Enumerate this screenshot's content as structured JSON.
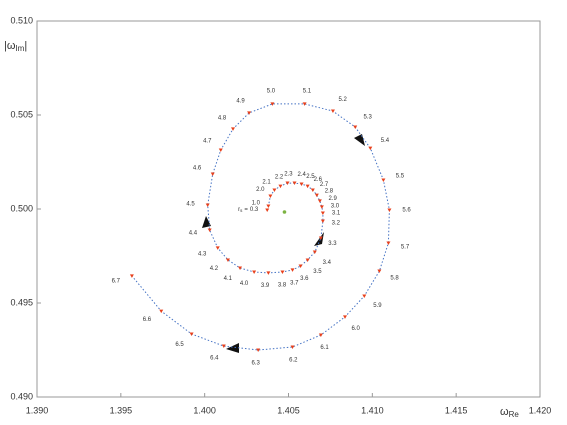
{
  "chart_data": {
    "type": "spiral",
    "x": [
      1.40373,
      1.4038,
      1.40392,
      1.40416,
      1.40452,
      1.40494,
      1.40536,
      1.40578,
      1.40614,
      1.40645,
      1.40669,
      1.40687,
      1.40699,
      1.40705,
      1.40705,
      1.40693,
      1.40657,
      1.40614,
      1.40572,
      1.40524,
      1.40464,
      1.4038,
      1.40295,
      1.40211,
      1.40139,
      1.40078,
      1.4003,
      1.40018,
      1.40048,
      1.40096,
      1.40169,
      1.40265,
      1.40404,
      1.40596,
      1.40765,
      1.40898,
      1.40988,
      1.41066,
      1.41102,
      1.41096,
      1.41042,
      1.40952,
      1.40837,
      1.40693,
      1.40524,
      1.40319,
      1.40114,
      1.39922,
      1.39741,
      1.39566
    ],
    "y": [
      0.49995,
      0.50016,
      0.50069,
      0.50101,
      0.50122,
      0.50138,
      0.50138,
      0.50133,
      0.50122,
      0.50101,
      0.50074,
      0.50043,
      0.50011,
      0.49979,
      0.49936,
      0.49846,
      0.49771,
      0.49729,
      0.49697,
      0.49676,
      0.49665,
      0.4966,
      0.49665,
      0.49686,
      0.49729,
      0.49793,
      0.49888,
      0.50021,
      0.50186,
      0.50314,
      0.50426,
      0.50511,
      0.50559,
      0.50559,
      0.50521,
      0.50436,
      0.50324,
      0.50154,
      0.49995,
      0.49819,
      0.4967,
      0.49537,
      0.49426,
      0.4933,
      0.49266,
      0.4925,
      0.49271,
      0.49335,
      0.49457,
      0.49644
    ],
    "point_labels": [
      "0.3",
      "1.0",
      "2.0",
      "2.1",
      "2.2",
      "2.3",
      "2.4",
      "2.5",
      "2.6",
      "2.7",
      "2.8",
      "2.9",
      "3.0",
      "3.1",
      "3.2",
      "3.3",
      "3.4",
      "3.5",
      "3.6",
      "3.7",
      "3.8",
      "3.9",
      "4.0",
      "4.1",
      "4.2",
      "4.3",
      "4.4",
      "4.5",
      "4.6",
      "4.7",
      "4.8",
      "4.9",
      "5.0",
      "5.1",
      "5.2",
      "5.3",
      "5.4",
      "5.5",
      "5.6",
      "5.7",
      "5.8",
      "5.9",
      "6.0",
      "6.1",
      "6.2",
      "6.3",
      "6.4",
      "6.5",
      "6.6",
      "6.7"
    ],
    "first_label_prefix": {
      "symbol": "r",
      "subscript": "s",
      "relation": "="
    },
    "center": {
      "x": 1.40476,
      "y": 0.49984,
      "color": "#7cb342"
    },
    "line_color": "#4472c4",
    "marker_color": "#e8401c",
    "xlabel": {
      "symbol": "ω",
      "subscript": "Re"
    },
    "ylabel": {
      "open": "|ω",
      "subscript": "Im",
      "close": "|"
    },
    "xlim": [
      1.39,
      1.42
    ],
    "xticks": [
      {
        "value": 1.39,
        "label": "1.390"
      },
      {
        "value": 1.395,
        "label": "1.395"
      },
      {
        "value": 1.4,
        "label": "1.400"
      },
      {
        "value": 1.405,
        "label": "1.405"
      },
      {
        "value": 1.41,
        "label": "1.410"
      },
      {
        "value": 1.415,
        "label": "1.415"
      },
      {
        "value": 1.42,
        "label": "1.420"
      }
    ],
    "ylim": [
      0.49,
      0.51
    ],
    "yticks": [
      {
        "value": 0.49,
        "label": "0.490"
      },
      {
        "value": 0.495,
        "label": "0.495"
      },
      {
        "value": 0.5,
        "label": "0.500"
      },
      {
        "value": 0.505,
        "label": "0.505"
      },
      {
        "value": 0.51,
        "label": "0.510"
      }
    ],
    "grid": false
  }
}
